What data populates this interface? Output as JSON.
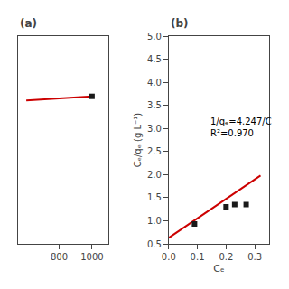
{
  "chart_data": [
    {
      "type": "scatter",
      "title": "(a)",
      "series": [
        {
          "type": "line",
          "color": "#cc0000",
          "x": [
            600,
            1000
          ],
          "values": [
            3.45,
            3.55
          ]
        },
        {
          "type": "scatter",
          "marker": "square",
          "color": "#1a1a1a",
          "x": [
            1000
          ],
          "values": [
            3.55
          ]
        }
      ],
      "xlim": [
        550,
        1100
      ],
      "xticks": [
        800,
        1000
      ],
      "ylim": [
        0,
        5
      ],
      "yticks": [],
      "tick_labels": "x",
      "grid": false
    },
    {
      "type": "scatter",
      "title": "(b)",
      "xlabel": "Cₑ",
      "ylabel": "Cₑ/qₑ (g L⁻¹)",
      "series": [
        {
          "type": "line",
          "color": "#cc0000",
          "x": [
            0.0,
            0.32
          ],
          "values": [
            0.63,
            1.98
          ]
        },
        {
          "type": "scatter",
          "marker": "square",
          "color": "#1a1a1a",
          "x": [
            0.09,
            0.2,
            0.23,
            0.27
          ],
          "values": [
            0.93,
            1.3,
            1.35,
            1.35
          ]
        }
      ],
      "xlim": [
        0.0,
        0.35
      ],
      "xticks": [
        {
          "value": 0,
          "label": "0.0"
        },
        0.1,
        0.2,
        0.3
      ],
      "ylim": [
        0.5,
        5.0
      ],
      "yticks": [
        0.5,
        {
          "value": 1,
          "label": "1.0"
        },
        1.5,
        {
          "value": 2,
          "label": "2.0"
        },
        2.5,
        {
          "value": 3,
          "label": "3.0"
        },
        3.5,
        {
          "value": 4,
          "label": "4.0"
        },
        4.5,
        {
          "value": 5,
          "label": "5.0"
        }
      ],
      "annotations": [
        {
          "text": "1/qₑ=4.247/C\nR²=0.970",
          "x": 0.14,
          "y": 3.3
        }
      ],
      "grid": false
    }
  ]
}
